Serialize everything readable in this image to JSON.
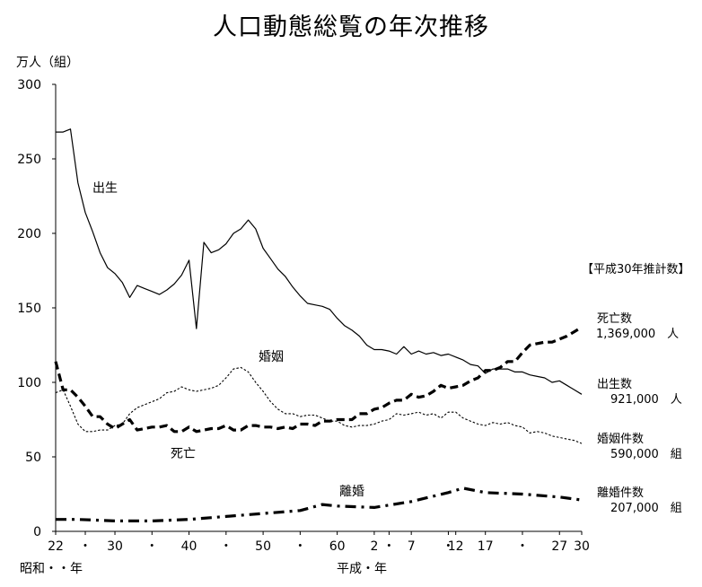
{
  "chart_data": {
    "type": "line",
    "title": "人口動態総覧の年次推移",
    "ylabel": "万人（組）",
    "ylim": [
      0,
      300
    ],
    "yticks": [
      0,
      50,
      100,
      150,
      200,
      250,
      300
    ],
    "x_tick_labels": [
      "22",
      "・",
      "30",
      "・",
      "40",
      "・",
      "50",
      "・",
      "60",
      "2",
      "・",
      "7",
      "・",
      "12",
      "17",
      "・",
      "27",
      "30"
    ],
    "x_tick_years": [
      1947,
      1951,
      1955,
      1960,
      1965,
      1970,
      1975,
      1980,
      1985,
      1990,
      1992,
      1995,
      2000,
      2001,
      2005,
      2010,
      2015,
      2018
    ],
    "x_era_showa": "昭和・・年",
    "x_era_heisei": "平成・年",
    "xlim": [
      1947,
      2018
    ],
    "grid": false,
    "legend_header": "【平成30年推計数】",
    "series": [
      {
        "name": "出生",
        "style": "solid",
        "end_label": "出生数",
        "end_value": "921,000　人",
        "x": [
          1947,
          1948,
          1949,
          1950,
          1951,
          1952,
          1953,
          1954,
          1955,
          1956,
          1957,
          1958,
          1959,
          1960,
          1961,
          1962,
          1963,
          1964,
          1965,
          1966,
          1967,
          1968,
          1969,
          1970,
          1971,
          1972,
          1973,
          1974,
          1975,
          1976,
          1977,
          1978,
          1979,
          1980,
          1981,
          1982,
          1983,
          1984,
          1985,
          1986,
          1987,
          1988,
          1989,
          1990,
          1991,
          1992,
          1993,
          1994,
          1995,
          1996,
          1997,
          1998,
          1999,
          2000,
          2001,
          2002,
          2003,
          2004,
          2005,
          2006,
          2007,
          2008,
          2009,
          2010,
          2011,
          2012,
          2013,
          2014,
          2015,
          2016,
          2017,
          2018
        ],
        "values": [
          268,
          268,
          270,
          234,
          214,
          201,
          187,
          177,
          173,
          167,
          157,
          165,
          163,
          161,
          159,
          162,
          166,
          172,
          182,
          136,
          194,
          187,
          189,
          193,
          200,
          203,
          209,
          203,
          190,
          183,
          176,
          171,
          164,
          158,
          153,
          152,
          151,
          149,
          143,
          138,
          135,
          131,
          125,
          122,
          122,
          121,
          119,
          124,
          119,
          121,
          119,
          120,
          118,
          119,
          117,
          115,
          112,
          111,
          106,
          109,
          109,
          109,
          107,
          107,
          105,
          104,
          103,
          100,
          101,
          98,
          95,
          92
        ]
      },
      {
        "name": "死亡",
        "style": "dashed-thick",
        "end_label": "死亡数",
        "end_value": "1,369,000　人",
        "x": [
          1947,
          1948,
          1949,
          1950,
          1951,
          1952,
          1953,
          1954,
          1955,
          1956,
          1957,
          1958,
          1959,
          1960,
          1961,
          1962,
          1963,
          1964,
          1965,
          1966,
          1967,
          1968,
          1969,
          1970,
          1971,
          1972,
          1973,
          1974,
          1975,
          1976,
          1977,
          1978,
          1979,
          1980,
          1981,
          1982,
          1983,
          1984,
          1985,
          1986,
          1987,
          1988,
          1989,
          1990,
          1991,
          1992,
          1993,
          1994,
          1995,
          1996,
          1997,
          1998,
          1999,
          2000,
          2001,
          2002,
          2003,
          2004,
          2005,
          2006,
          2007,
          2008,
          2009,
          2010,
          2011,
          2012,
          2013,
          2014,
          2015,
          2016,
          2017,
          2018
        ],
        "values": [
          114,
          95,
          95,
          90,
          84,
          77,
          77,
          72,
          69,
          72,
          75,
          68,
          69,
          70,
          70,
          71,
          67,
          67,
          70,
          67,
          68,
          69,
          69,
          71,
          68,
          68,
          71,
          71,
          70,
          70,
          69,
          70,
          69,
          72,
          72,
          71,
          74,
          74,
          75,
          75,
          75,
          79,
          79,
          82,
          83,
          86,
          88,
          88,
          92,
          90,
          91,
          94,
          98,
          96,
          97,
          98,
          101,
          103,
          108,
          108,
          110,
          114,
          114,
          120,
          125,
          126,
          127,
          127,
          129,
          131,
          134,
          137
        ]
      },
      {
        "name": "婚姻",
        "style": "dotted",
        "end_label": "婚姻件数",
        "end_value": "590,000　組",
        "x": [
          1947,
          1948,
          1949,
          1950,
          1951,
          1952,
          1953,
          1954,
          1955,
          1956,
          1957,
          1958,
          1959,
          1960,
          1961,
          1962,
          1963,
          1964,
          1965,
          1966,
          1967,
          1968,
          1969,
          1970,
          1971,
          1972,
          1973,
          1974,
          1975,
          1976,
          1977,
          1978,
          1979,
          1980,
          1981,
          1982,
          1983,
          1984,
          1985,
          1986,
          1987,
          1988,
          1989,
          1990,
          1991,
          1992,
          1993,
          1994,
          1995,
          1996,
          1997,
          1998,
          1999,
          2000,
          2001,
          2002,
          2003,
          2004,
          2005,
          2006,
          2007,
          2008,
          2009,
          2010,
          2011,
          2012,
          2013,
          2014,
          2015,
          2016,
          2017,
          2018
        ],
        "values": [
          93,
          95,
          84,
          72,
          67,
          67,
          68,
          68,
          71,
          72,
          79,
          83,
          85,
          87,
          89,
          93,
          94,
          97,
          95,
          94,
          95,
          96,
          98,
          103,
          109,
          110,
          107,
          100,
          94,
          87,
          82,
          79,
          79,
          77,
          78,
          78,
          76,
          74,
          74,
          71,
          70,
          71,
          71,
          72,
          74,
          75,
          79,
          78,
          79,
          80,
          78,
          79,
          76,
          80,
          80,
          76,
          74,
          72,
          71,
          73,
          72,
          73,
          71,
          70,
          66,
          67,
          66,
          64,
          63,
          62,
          61,
          59
        ]
      },
      {
        "name": "離婚",
        "style": "dash-dot-thick",
        "end_label": "離婚件数",
        "end_value": "207,000　組",
        "x": [
          1947,
          1950,
          1955,
          1960,
          1965,
          1970,
          1975,
          1980,
          1983,
          1985,
          1990,
          1995,
          2000,
          2002,
          2005,
          2010,
          2015,
          2018
        ],
        "values": [
          8,
          8,
          7,
          7,
          8,
          10,
          12,
          14,
          18,
          17,
          16,
          20,
          26,
          29,
          26,
          25,
          23,
          21
        ]
      }
    ],
    "annotations": [
      "出生",
      "婚姻",
      "死亡",
      "離婚"
    ]
  }
}
